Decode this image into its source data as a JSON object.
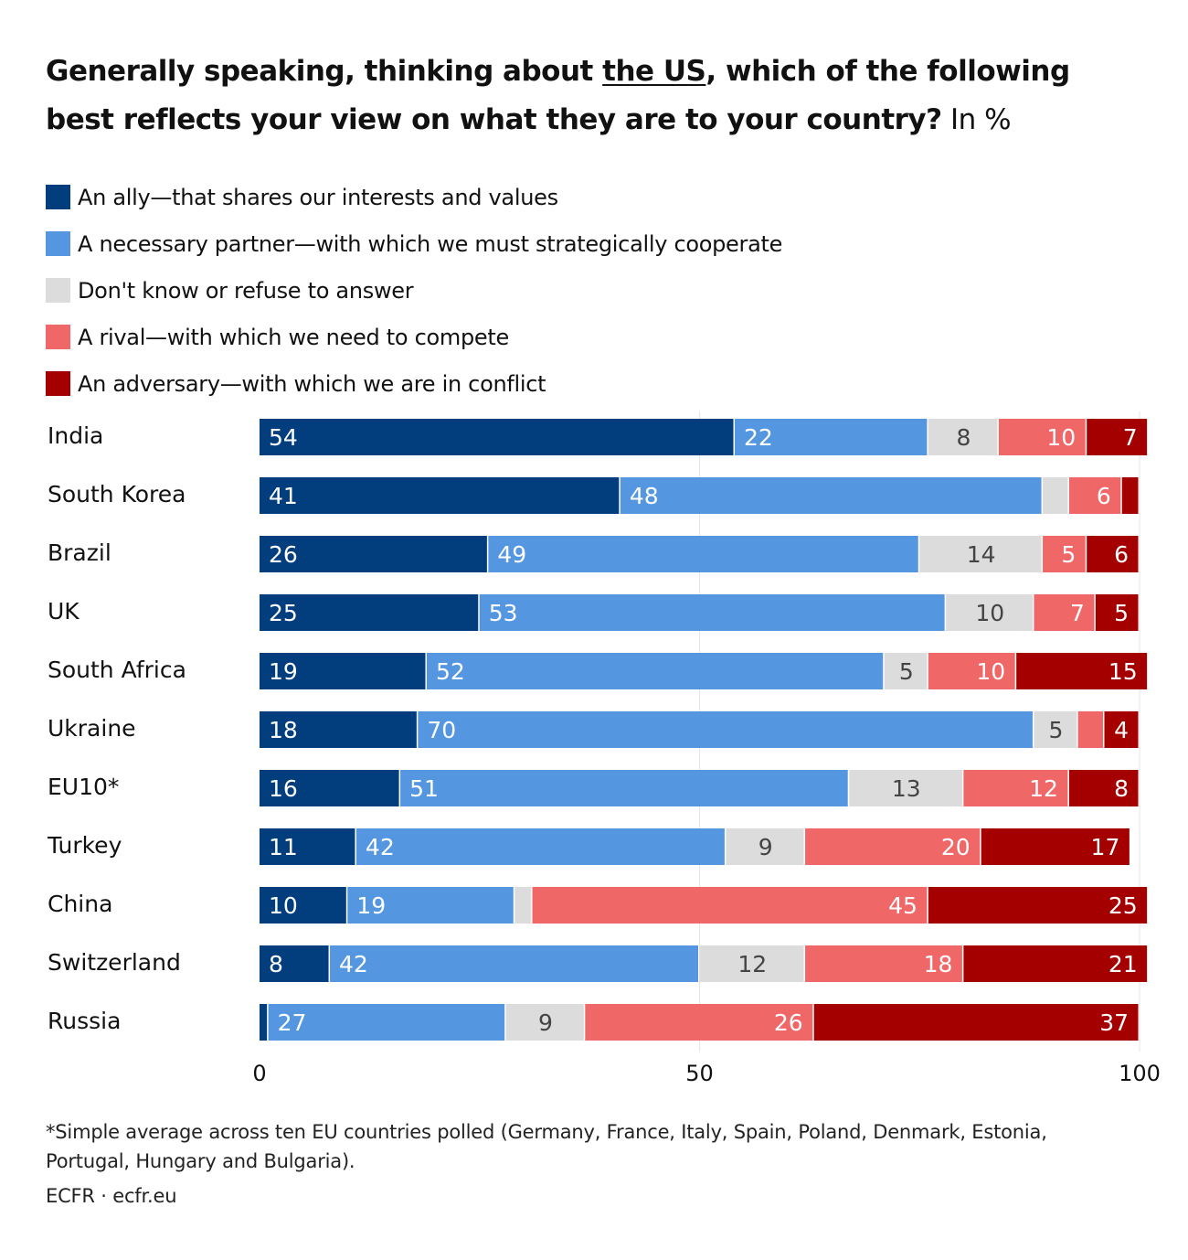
{
  "title": {
    "pre": "Generally speaking, thinking about ",
    "underlined": "the US",
    "post": ", which of the following best reflects your view on what they are to your country?",
    "unit": " In %"
  },
  "footnote": "*Simple average across ten EU countries polled (Germany, France, Italy, Spain, Poland, Denmark, Estonia, Portugal, Hungary and Bulgaria).",
  "source": "ECFR · ecfr.eu",
  "chart_data": {
    "type": "bar",
    "orientation": "horizontal",
    "stacked": true,
    "categories": [
      "India",
      "South Korea",
      "Brazil",
      "UK",
      "South Africa",
      "Ukraine",
      "EU10*",
      "Turkey",
      "China",
      "Switzerland",
      "Russia"
    ],
    "series": [
      {
        "name": "An ally—that shares our interests and values",
        "color": "#023d7d",
        "values": [
          54,
          41,
          26,
          25,
          19,
          18,
          16,
          11,
          10,
          8,
          1
        ]
      },
      {
        "name": "A necessary partner—with which we must strategically cooperate",
        "color": "#5596e0",
        "values": [
          22,
          48,
          49,
          53,
          52,
          70,
          51,
          42,
          19,
          42,
          27
        ]
      },
      {
        "name": "Don't know or refuse to answer",
        "color": "#dcdcdc",
        "values": [
          8,
          3,
          14,
          10,
          5,
          5,
          13,
          9,
          2,
          12,
          9
        ]
      },
      {
        "name": "A rival—with which we need to compete",
        "color": "#f06767",
        "values": [
          10,
          6,
          5,
          7,
          10,
          3,
          12,
          20,
          45,
          18,
          26
        ]
      },
      {
        "name": "An adversary—with which we are in conflict",
        "color": "#a40000",
        "values": [
          7,
          2,
          6,
          5,
          15,
          4,
          8,
          17,
          25,
          21,
          37
        ]
      }
    ],
    "xlim": [
      0,
      100
    ],
    "xticks": [
      "0",
      "50",
      "100"
    ],
    "grid": true,
    "legend": "top"
  }
}
